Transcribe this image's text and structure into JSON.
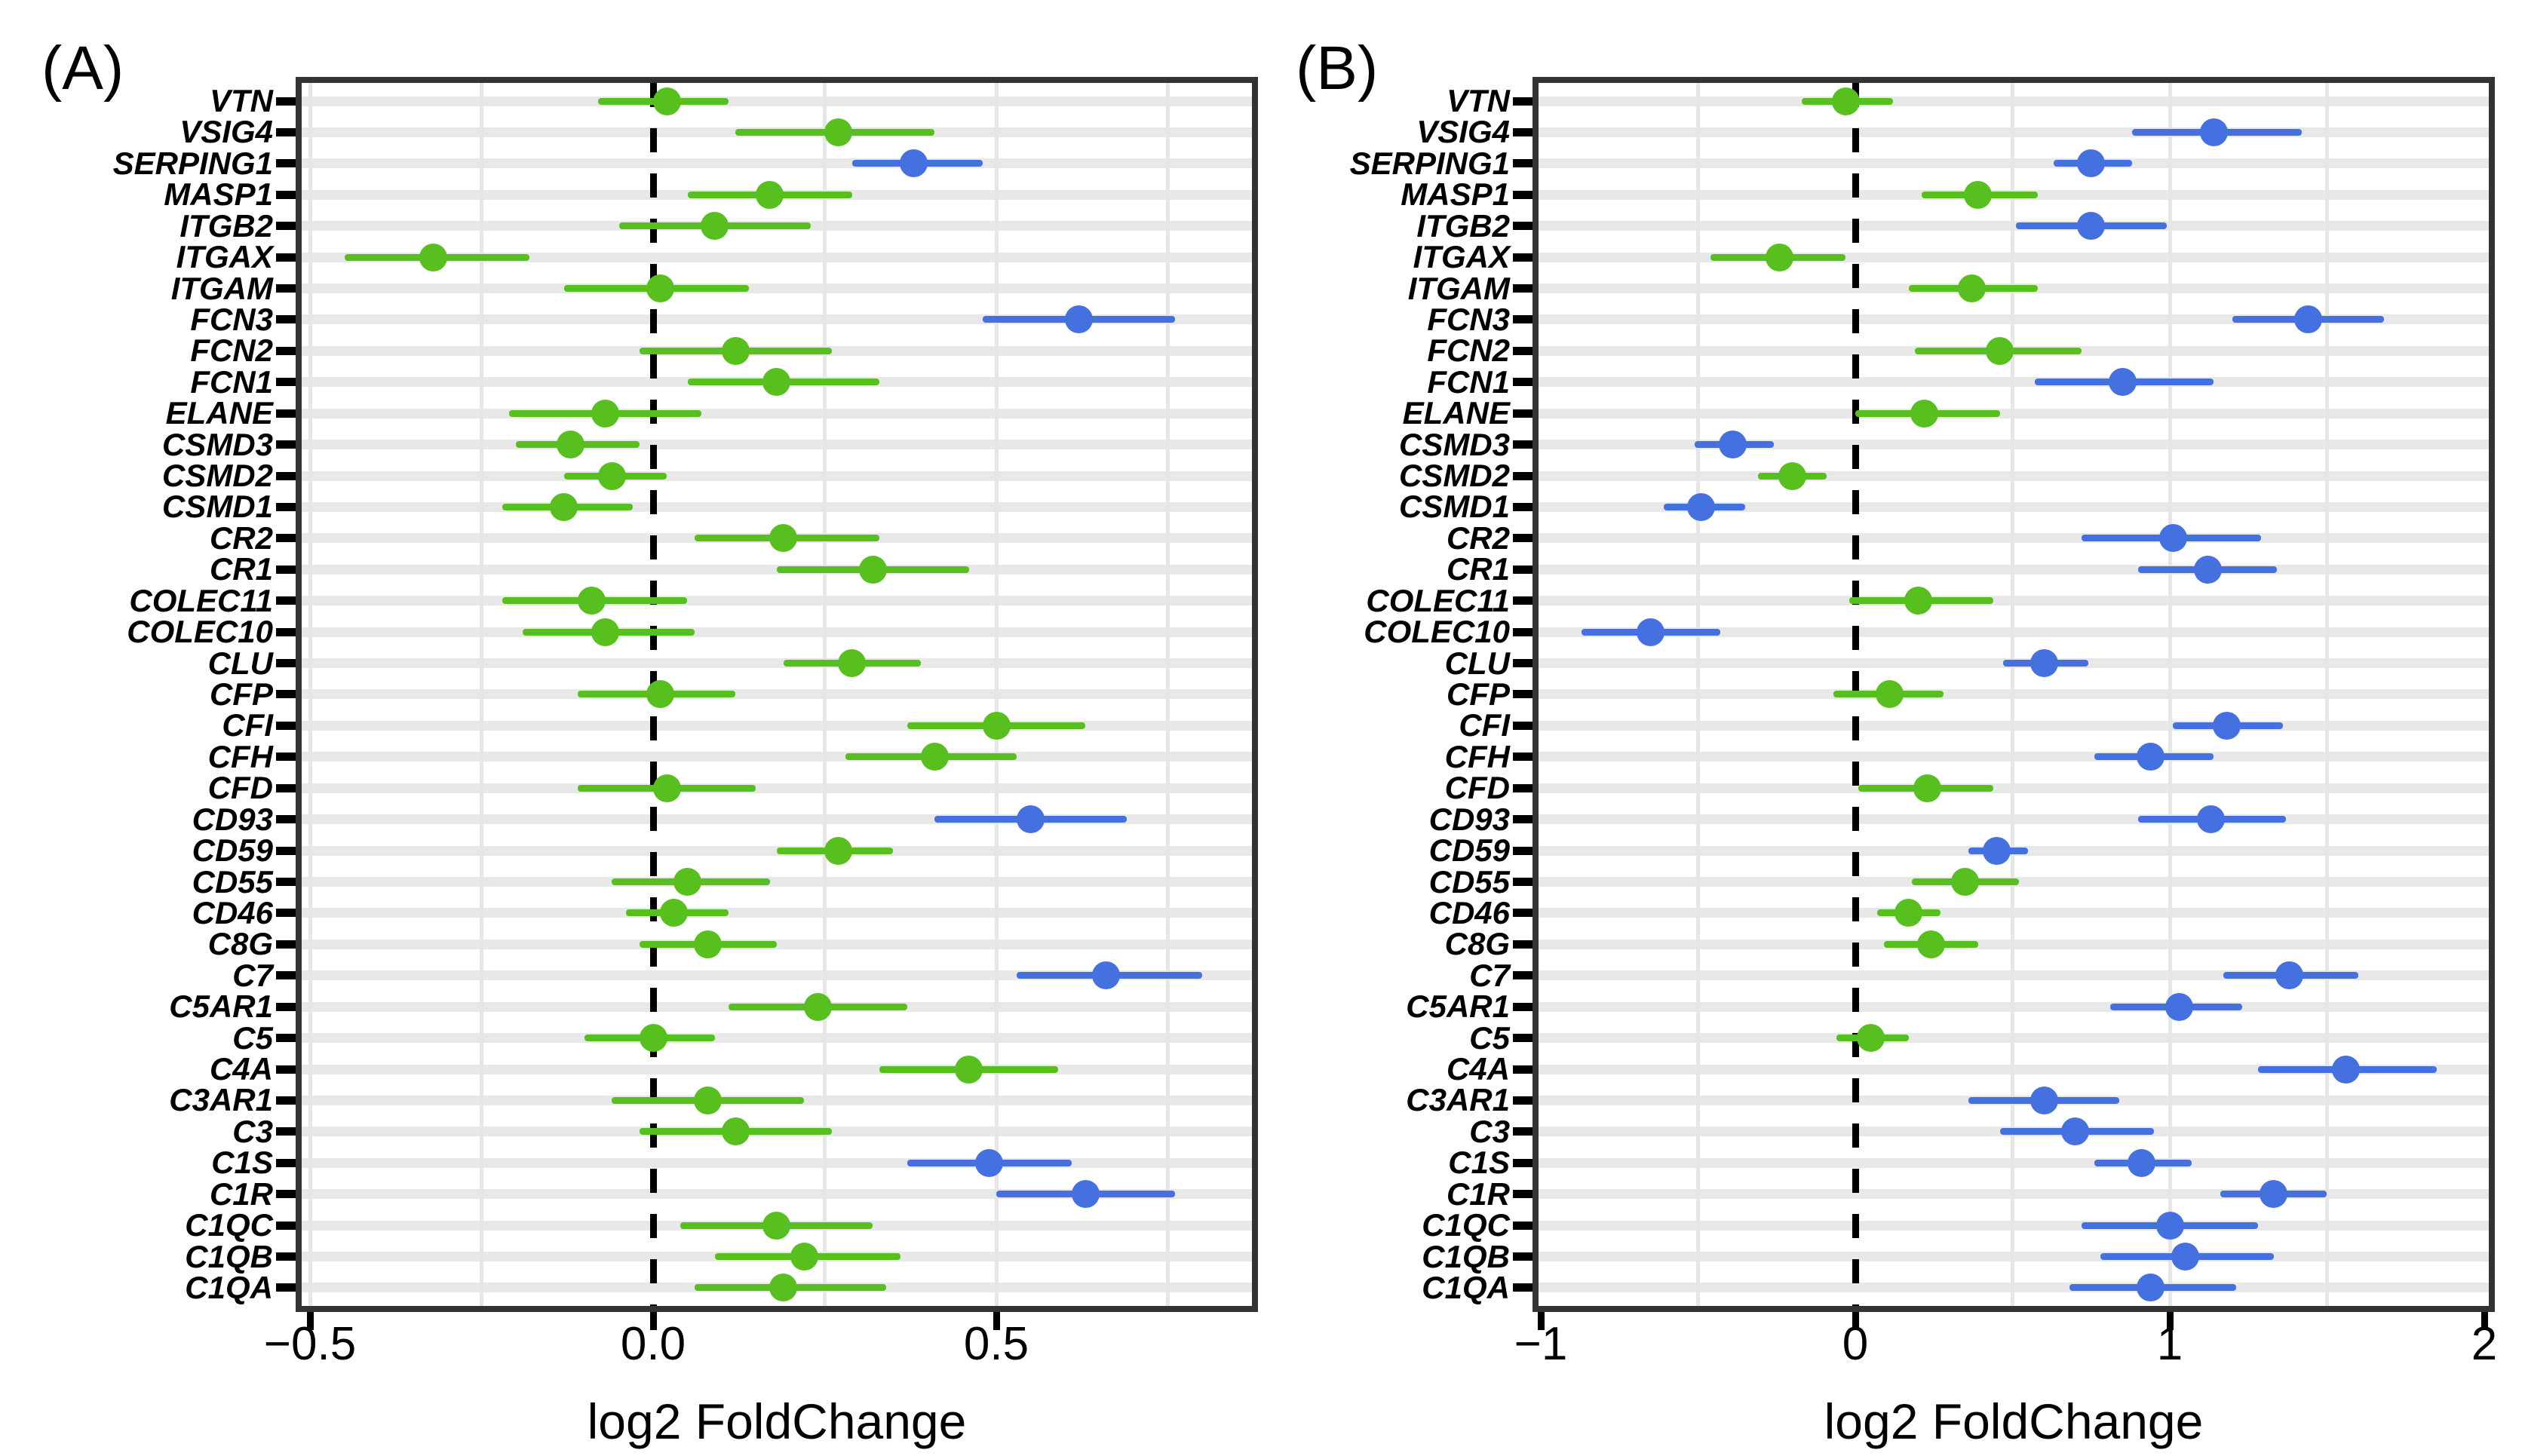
{
  "figure": {
    "panel_a_tag": "(A)",
    "panel_b_tag": "(B)",
    "colors": {
      "green": "#57C01F",
      "blue": "#4570E0",
      "stripe": "#E8E8E8",
      "gridline": "#E6E6E6",
      "panel_border": "#333333",
      "zero_line": "#000000"
    }
  },
  "chart_data": [
    {
      "type": "scatter",
      "variant": "forest-dot-error",
      "panel_label": "(A)",
      "xlabel": "log2 FoldChange",
      "xlim": [
        -0.51,
        0.87
      ],
      "grid": "on",
      "legend": "none",
      "zero_reference_line": 0.0,
      "xticks": [
        {
          "value": -0.5,
          "label": "−0.5"
        },
        {
          "value": 0.0,
          "label": "0.0"
        },
        {
          "value": 0.5,
          "label": "0.5"
        }
      ],
      "minor_gridlines": [
        -0.5,
        -0.25,
        0.25,
        0.5,
        0.75
      ],
      "points": [
        {
          "gene": "VTN",
          "estimate": 0.02,
          "lo": -0.08,
          "hi": 0.11,
          "group": "green"
        },
        {
          "gene": "VSIG4",
          "estimate": 0.27,
          "lo": 0.12,
          "hi": 0.41,
          "group": "green"
        },
        {
          "gene": "SERPING1",
          "estimate": 0.38,
          "lo": 0.29,
          "hi": 0.48,
          "group": "blue"
        },
        {
          "gene": "MASP1",
          "estimate": 0.17,
          "lo": 0.05,
          "hi": 0.29,
          "group": "green"
        },
        {
          "gene": "ITGB2",
          "estimate": 0.09,
          "lo": -0.05,
          "hi": 0.23,
          "group": "green"
        },
        {
          "gene": "ITGAX",
          "estimate": -0.32,
          "lo": -0.45,
          "hi": -0.18,
          "group": "green"
        },
        {
          "gene": "ITGAM",
          "estimate": 0.01,
          "lo": -0.13,
          "hi": 0.14,
          "group": "green"
        },
        {
          "gene": "FCN3",
          "estimate": 0.62,
          "lo": 0.48,
          "hi": 0.76,
          "group": "blue"
        },
        {
          "gene": "FCN2",
          "estimate": 0.12,
          "lo": -0.02,
          "hi": 0.26,
          "group": "green"
        },
        {
          "gene": "FCN1",
          "estimate": 0.18,
          "lo": 0.05,
          "hi": 0.33,
          "group": "green"
        },
        {
          "gene": "ELANE",
          "estimate": -0.07,
          "lo": -0.21,
          "hi": 0.07,
          "group": "green"
        },
        {
          "gene": "CSMD3",
          "estimate": -0.12,
          "lo": -0.2,
          "hi": -0.02,
          "group": "green"
        },
        {
          "gene": "CSMD2",
          "estimate": -0.06,
          "lo": -0.13,
          "hi": 0.02,
          "group": "green"
        },
        {
          "gene": "CSMD1",
          "estimate": -0.13,
          "lo": -0.22,
          "hi": -0.03,
          "group": "green"
        },
        {
          "gene": "CR2",
          "estimate": 0.19,
          "lo": 0.06,
          "hi": 0.33,
          "group": "green"
        },
        {
          "gene": "CR1",
          "estimate": 0.32,
          "lo": 0.18,
          "hi": 0.46,
          "group": "green"
        },
        {
          "gene": "COLEC11",
          "estimate": -0.09,
          "lo": -0.22,
          "hi": 0.05,
          "group": "green"
        },
        {
          "gene": "COLEC10",
          "estimate": -0.07,
          "lo": -0.19,
          "hi": 0.06,
          "group": "green"
        },
        {
          "gene": "CLU",
          "estimate": 0.29,
          "lo": 0.19,
          "hi": 0.39,
          "group": "green"
        },
        {
          "gene": "CFP",
          "estimate": 0.01,
          "lo": -0.11,
          "hi": 0.12,
          "group": "green"
        },
        {
          "gene": "CFI",
          "estimate": 0.5,
          "lo": 0.37,
          "hi": 0.63,
          "group": "green"
        },
        {
          "gene": "CFH",
          "estimate": 0.41,
          "lo": 0.28,
          "hi": 0.53,
          "group": "green"
        },
        {
          "gene": "CFD",
          "estimate": 0.02,
          "lo": -0.11,
          "hi": 0.15,
          "group": "green"
        },
        {
          "gene": "CD93",
          "estimate": 0.55,
          "lo": 0.41,
          "hi": 0.69,
          "group": "blue"
        },
        {
          "gene": "CD59",
          "estimate": 0.27,
          "lo": 0.18,
          "hi": 0.35,
          "group": "green"
        },
        {
          "gene": "CD55",
          "estimate": 0.05,
          "lo": -0.06,
          "hi": 0.17,
          "group": "green"
        },
        {
          "gene": "CD46",
          "estimate": 0.03,
          "lo": -0.04,
          "hi": 0.11,
          "group": "green"
        },
        {
          "gene": "C8G",
          "estimate": 0.08,
          "lo": -0.02,
          "hi": 0.18,
          "group": "green"
        },
        {
          "gene": "C7",
          "estimate": 0.66,
          "lo": 0.53,
          "hi": 0.8,
          "group": "blue"
        },
        {
          "gene": "C5AR1",
          "estimate": 0.24,
          "lo": 0.11,
          "hi": 0.37,
          "group": "green"
        },
        {
          "gene": "C5",
          "estimate": 0.0,
          "lo": -0.1,
          "hi": 0.09,
          "group": "green"
        },
        {
          "gene": "C4A",
          "estimate": 0.46,
          "lo": 0.33,
          "hi": 0.59,
          "group": "green"
        },
        {
          "gene": "C3AR1",
          "estimate": 0.08,
          "lo": -0.06,
          "hi": 0.22,
          "group": "green"
        },
        {
          "gene": "C3",
          "estimate": 0.12,
          "lo": -0.02,
          "hi": 0.26,
          "group": "green"
        },
        {
          "gene": "C1S",
          "estimate": 0.49,
          "lo": 0.37,
          "hi": 0.61,
          "group": "blue"
        },
        {
          "gene": "C1R",
          "estimate": 0.63,
          "lo": 0.5,
          "hi": 0.76,
          "group": "blue"
        },
        {
          "gene": "C1QC",
          "estimate": 0.18,
          "lo": 0.04,
          "hi": 0.32,
          "group": "green"
        },
        {
          "gene": "C1QB",
          "estimate": 0.22,
          "lo": 0.09,
          "hi": 0.36,
          "group": "green"
        },
        {
          "gene": "C1QA",
          "estimate": 0.19,
          "lo": 0.06,
          "hi": 0.34,
          "group": "green"
        }
      ]
    },
    {
      "type": "scatter",
      "variant": "forest-dot-error",
      "panel_label": "(B)",
      "xlabel": "log2 FoldChange",
      "xlim": [
        -1.0,
        2.0
      ],
      "grid": "on",
      "legend": "none",
      "zero_reference_line": 0.0,
      "xticks": [
        {
          "value": -1,
          "label": "−1"
        },
        {
          "value": 0,
          "label": "0"
        },
        {
          "value": 1,
          "label": "1"
        },
        {
          "value": 2,
          "label": "2"
        }
      ],
      "minor_gridlines": [
        -0.5,
        0.5,
        1.0,
        1.5
      ],
      "points": [
        {
          "gene": "VTN",
          "estimate": -0.03,
          "lo": -0.17,
          "hi": 0.12,
          "group": "green"
        },
        {
          "gene": "VSIG4",
          "estimate": 1.14,
          "lo": 0.88,
          "hi": 1.42,
          "group": "blue"
        },
        {
          "gene": "SERPING1",
          "estimate": 0.75,
          "lo": 0.63,
          "hi": 0.88,
          "group": "blue"
        },
        {
          "gene": "MASP1",
          "estimate": 0.39,
          "lo": 0.21,
          "hi": 0.58,
          "group": "green"
        },
        {
          "gene": "ITGB2",
          "estimate": 0.75,
          "lo": 0.51,
          "hi": 0.99,
          "group": "blue"
        },
        {
          "gene": "ITGAX",
          "estimate": -0.24,
          "lo": -0.46,
          "hi": -0.03,
          "group": "green"
        },
        {
          "gene": "ITGAM",
          "estimate": 0.37,
          "lo": 0.17,
          "hi": 0.58,
          "group": "green"
        },
        {
          "gene": "FCN3",
          "estimate": 1.44,
          "lo": 1.2,
          "hi": 1.68,
          "group": "blue"
        },
        {
          "gene": "FCN2",
          "estimate": 0.46,
          "lo": 0.19,
          "hi": 0.72,
          "group": "green"
        },
        {
          "gene": "FCN1",
          "estimate": 0.85,
          "lo": 0.57,
          "hi": 1.14,
          "group": "blue"
        },
        {
          "gene": "ELANE",
          "estimate": 0.22,
          "lo": 0.0,
          "hi": 0.46,
          "group": "green"
        },
        {
          "gene": "CSMD3",
          "estimate": -0.39,
          "lo": -0.51,
          "hi": -0.26,
          "group": "blue"
        },
        {
          "gene": "CSMD2",
          "estimate": -0.2,
          "lo": -0.31,
          "hi": -0.09,
          "group": "green"
        },
        {
          "gene": "CSMD1",
          "estimate": -0.49,
          "lo": -0.61,
          "hi": -0.35,
          "group": "blue"
        },
        {
          "gene": "CR2",
          "estimate": 1.01,
          "lo": 0.72,
          "hi": 1.29,
          "group": "blue"
        },
        {
          "gene": "CR1",
          "estimate": 1.12,
          "lo": 0.9,
          "hi": 1.34,
          "group": "blue"
        },
        {
          "gene": "COLEC11",
          "estimate": 0.2,
          "lo": -0.02,
          "hi": 0.44,
          "group": "green"
        },
        {
          "gene": "COLEC10",
          "estimate": -0.65,
          "lo": -0.87,
          "hi": -0.43,
          "group": "blue"
        },
        {
          "gene": "CLU",
          "estimate": 0.6,
          "lo": 0.47,
          "hi": 0.74,
          "group": "blue"
        },
        {
          "gene": "CFP",
          "estimate": 0.11,
          "lo": -0.07,
          "hi": 0.28,
          "group": "green"
        },
        {
          "gene": "CFI",
          "estimate": 1.18,
          "lo": 1.01,
          "hi": 1.36,
          "group": "blue"
        },
        {
          "gene": "CFH",
          "estimate": 0.94,
          "lo": 0.76,
          "hi": 1.14,
          "group": "blue"
        },
        {
          "gene": "CFD",
          "estimate": 0.23,
          "lo": 0.01,
          "hi": 0.44,
          "group": "green"
        },
        {
          "gene": "CD93",
          "estimate": 1.13,
          "lo": 0.9,
          "hi": 1.37,
          "group": "blue"
        },
        {
          "gene": "CD59",
          "estimate": 0.45,
          "lo": 0.36,
          "hi": 0.55,
          "group": "blue"
        },
        {
          "gene": "CD55",
          "estimate": 0.35,
          "lo": 0.18,
          "hi": 0.52,
          "group": "green"
        },
        {
          "gene": "CD46",
          "estimate": 0.17,
          "lo": 0.07,
          "hi": 0.27,
          "group": "green"
        },
        {
          "gene": "C8G",
          "estimate": 0.24,
          "lo": 0.09,
          "hi": 0.39,
          "group": "green"
        },
        {
          "gene": "C7",
          "estimate": 1.38,
          "lo": 1.17,
          "hi": 1.6,
          "group": "blue"
        },
        {
          "gene": "C5AR1",
          "estimate": 1.03,
          "lo": 0.81,
          "hi": 1.23,
          "group": "blue"
        },
        {
          "gene": "C5",
          "estimate": 0.05,
          "lo": -0.06,
          "hi": 0.17,
          "group": "green"
        },
        {
          "gene": "C4A",
          "estimate": 1.56,
          "lo": 1.28,
          "hi": 1.85,
          "group": "blue"
        },
        {
          "gene": "C3AR1",
          "estimate": 0.6,
          "lo": 0.36,
          "hi": 0.84,
          "group": "blue"
        },
        {
          "gene": "C3",
          "estimate": 0.7,
          "lo": 0.46,
          "hi": 0.95,
          "group": "blue"
        },
        {
          "gene": "C1S",
          "estimate": 0.91,
          "lo": 0.76,
          "hi": 1.07,
          "group": "blue"
        },
        {
          "gene": "C1R",
          "estimate": 1.33,
          "lo": 1.16,
          "hi": 1.5,
          "group": "blue"
        },
        {
          "gene": "C1QC",
          "estimate": 1.0,
          "lo": 0.72,
          "hi": 1.28,
          "group": "blue"
        },
        {
          "gene": "C1QB",
          "estimate": 1.05,
          "lo": 0.78,
          "hi": 1.33,
          "group": "blue"
        },
        {
          "gene": "C1QA",
          "estimate": 0.94,
          "lo": 0.68,
          "hi": 1.21,
          "group": "blue"
        }
      ]
    }
  ]
}
